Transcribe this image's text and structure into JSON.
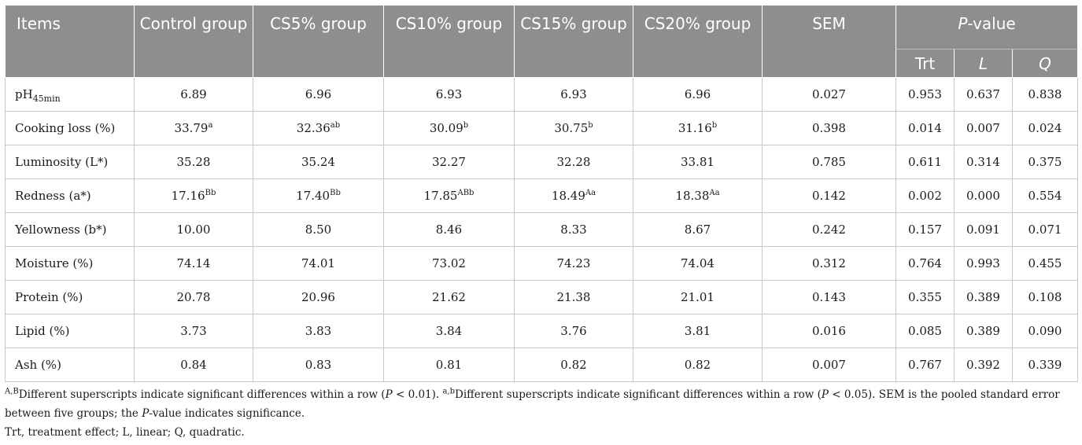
{
  "header": {
    "items": "Items",
    "groups": [
      "Control group",
      "CS5% group",
      "CS10% group",
      "CS15% group",
      "CS20% group"
    ],
    "sem": "SEM",
    "pvalue_italic": "P",
    "pvalue_rest": "-value",
    "sub": [
      "Trt",
      "L",
      "Q"
    ]
  },
  "rows": [
    {
      "label": "pH",
      "label_sub": "45min",
      "vals": [
        [
          "6.89",
          ""
        ],
        [
          "6.96",
          ""
        ],
        [
          "6.93",
          ""
        ],
        [
          "6.93",
          ""
        ],
        [
          "6.96",
          ""
        ]
      ],
      "sem": "0.027",
      "p": [
        "0.953",
        "0.637",
        "0.838"
      ]
    },
    {
      "label": "Cooking loss (%)",
      "label_sub": "",
      "vals": [
        [
          "33.79",
          "a"
        ],
        [
          "32.36",
          "ab"
        ],
        [
          "30.09",
          "b"
        ],
        [
          "30.75",
          "b"
        ],
        [
          "31.16",
          "b"
        ]
      ],
      "sem": "0.398",
      "p": [
        "0.014",
        "0.007",
        "0.024"
      ]
    },
    {
      "label": "Luminosity (L*)",
      "label_sub": "",
      "vals": [
        [
          "35.28",
          ""
        ],
        [
          "35.24",
          ""
        ],
        [
          "32.27",
          ""
        ],
        [
          "32.28",
          ""
        ],
        [
          "33.81",
          ""
        ]
      ],
      "sem": "0.785",
      "p": [
        "0.611",
        "0.314",
        "0.375"
      ]
    },
    {
      "label": "Redness (a*)",
      "label_sub": "",
      "vals": [
        [
          "17.16",
          "Bb"
        ],
        [
          "17.40",
          "Bb"
        ],
        [
          "17.85",
          "ABb"
        ],
        [
          "18.49",
          "Aa"
        ],
        [
          "18.38",
          "Aa"
        ]
      ],
      "sem": "0.142",
      "p": [
        "0.002",
        "0.000",
        "0.554"
      ]
    },
    {
      "label": "Yellowness (b*)",
      "label_sub": "",
      "vals": [
        [
          "10.00",
          ""
        ],
        [
          "8.50",
          ""
        ],
        [
          "8.46",
          ""
        ],
        [
          "8.33",
          ""
        ],
        [
          "8.67",
          ""
        ]
      ],
      "sem": "0.242",
      "p": [
        "0.157",
        "0.091",
        "0.071"
      ]
    },
    {
      "label": "Moisture (%)",
      "label_sub": "",
      "vals": [
        [
          "74.14",
          ""
        ],
        [
          "74.01",
          ""
        ],
        [
          "73.02",
          ""
        ],
        [
          "74.23",
          ""
        ],
        [
          "74.04",
          ""
        ]
      ],
      "sem": "0.312",
      "p": [
        "0.764",
        "0.993",
        "0.455"
      ]
    },
    {
      "label": "Protein (%)",
      "label_sub": "",
      "vals": [
        [
          "20.78",
          ""
        ],
        [
          "20.96",
          ""
        ],
        [
          "21.62",
          ""
        ],
        [
          "21.38",
          ""
        ],
        [
          "21.01",
          ""
        ]
      ],
      "sem": "0.143",
      "p": [
        "0.355",
        "0.389",
        "0.108"
      ]
    },
    {
      "label": "Lipid (%)",
      "label_sub": "",
      "vals": [
        [
          "3.73",
          ""
        ],
        [
          "3.83",
          ""
        ],
        [
          "3.84",
          ""
        ],
        [
          "3.76",
          ""
        ],
        [
          "3.81",
          ""
        ]
      ],
      "sem": "0.016",
      "p": [
        "0.085",
        "0.389",
        "0.090"
      ]
    },
    {
      "label": "Ash (%)",
      "label_sub": "",
      "vals": [
        [
          "0.84",
          ""
        ],
        [
          "0.83",
          ""
        ],
        [
          "0.81",
          ""
        ],
        [
          "0.82",
          ""
        ],
        [
          "0.82",
          ""
        ]
      ],
      "sem": "0.007",
      "p": [
        "0.767",
        "0.392",
        "0.339"
      ]
    }
  ],
  "notes": {
    "n1_sup": "A,B",
    "n1_text_a": "Different superscripts indicate significant differences within a row (",
    "n1_p": "P",
    "n1_text_b": " < 0.01). ",
    "n2_sup": "a,b",
    "n2_text_a": "Different superscripts indicate significant differences within a row (",
    "n2_p": "P",
    "n2_text_b": " < 0.05). SEM is the pooled standard error between five groups; the ",
    "n2_p2": "P",
    "n2_text_c": "-value indicates significance.",
    "line2": "Trt, treatment effect; L, linear; Q, quadratic."
  }
}
